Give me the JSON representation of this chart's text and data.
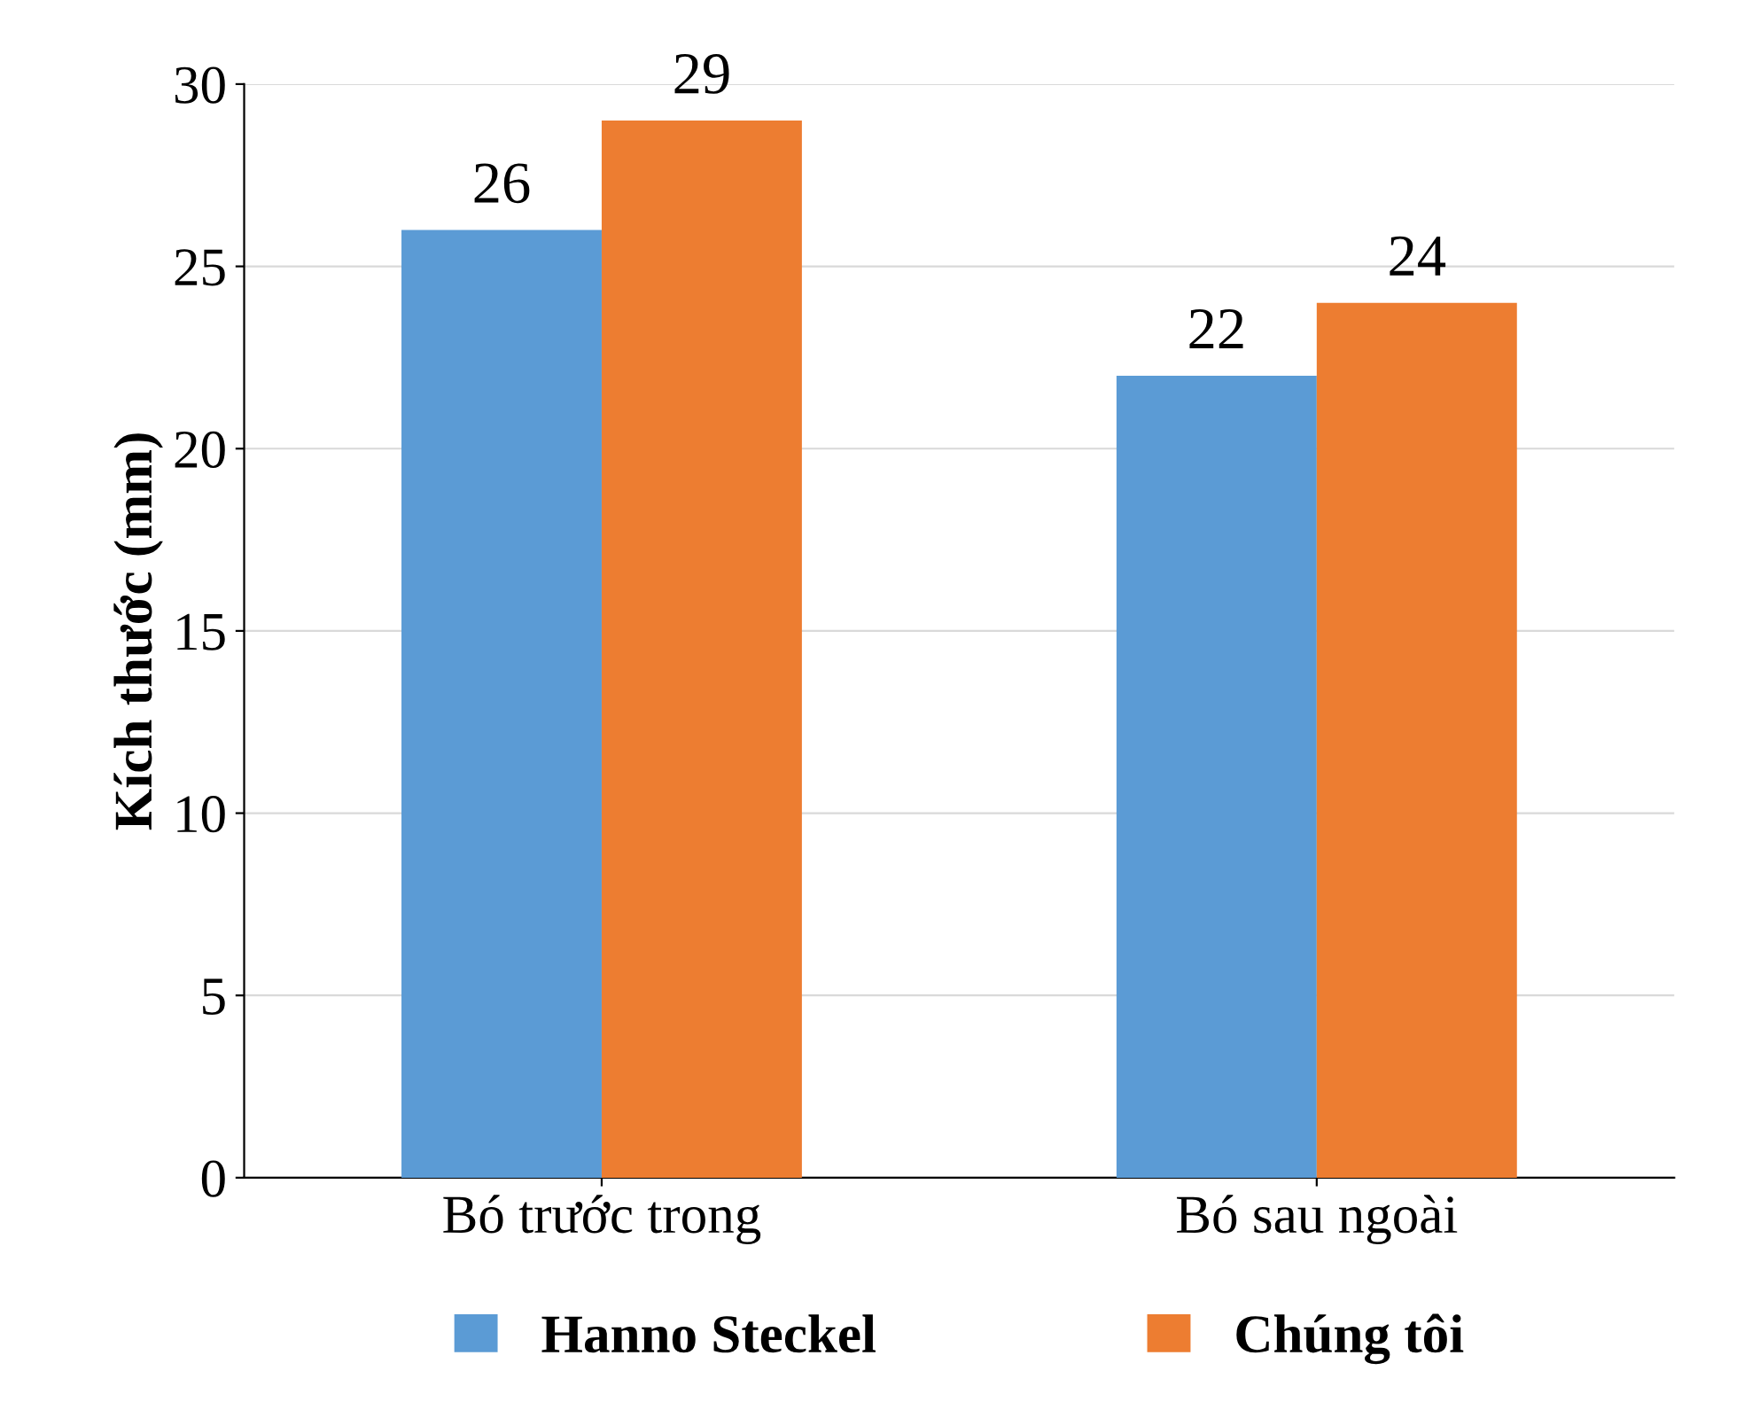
{
  "chart_data": {
    "type": "bar",
    "ylabel": "Kích thước (mm)",
    "categories": [
      "Bó trước trong",
      "Bó sau ngoài"
    ],
    "series": [
      {
        "name": "Hanno Steckel",
        "color": "#5b9bd5",
        "values": [
          26,
          22
        ]
      },
      {
        "name": "Chúng tôi",
        "color": "#ed7d31",
        "values": [
          29,
          24
        ]
      }
    ],
    "ylim": [
      0,
      30
    ],
    "yticks": [
      0,
      5,
      10,
      15,
      20,
      25,
      30
    ],
    "grid": "y",
    "legend": "bottom",
    "data_labels": true
  }
}
